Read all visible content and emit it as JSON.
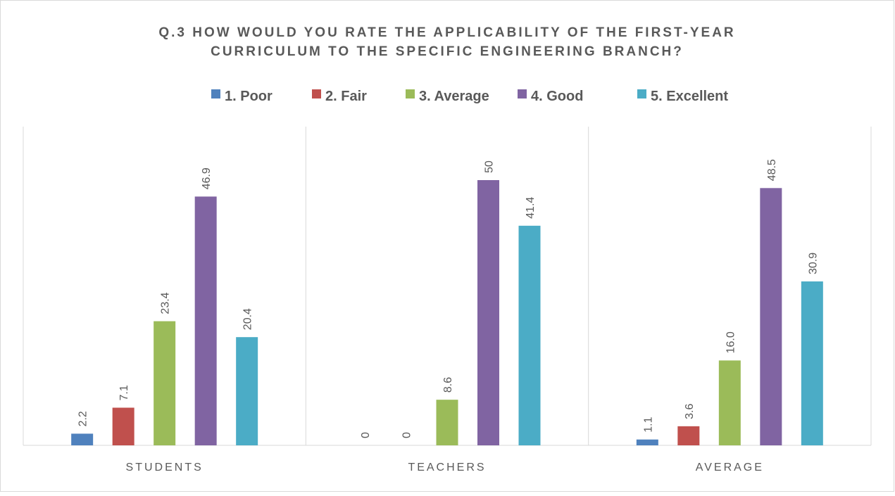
{
  "chart_data": {
    "type": "bar",
    "title_lines": [
      "Q.3  HOW WOULD YOU RATE THE APPLICABILITY OF THE FIRST-YEAR",
      "CURRICULUM TO THE SPECIFIC ENGINEERING BRANCH?"
    ],
    "categories": [
      "STUDENTS",
      "TEACHERS",
      "AVERAGE"
    ],
    "series": [
      {
        "name": "1.   Poor",
        "color": "#4F81BD",
        "values": [
          2.2,
          0,
          1.1
        ],
        "labels": [
          "2.2",
          "0",
          "1.1"
        ]
      },
      {
        "name": "2.   Fair",
        "color": "#C0504D",
        "values": [
          7.1,
          0,
          3.6
        ],
        "labels": [
          "7.1",
          "0",
          "3.6"
        ]
      },
      {
        "name": "3.   Average",
        "color": "#9BBB59",
        "values": [
          23.4,
          8.6,
          16.0
        ],
        "labels": [
          "23.4",
          "8.6",
          "16.0"
        ]
      },
      {
        "name": "4.   Good",
        "color": "#8064A2",
        "values": [
          46.9,
          50,
          48.5
        ],
        "labels": [
          "46.9",
          "50",
          "48.5"
        ]
      },
      {
        "name": "5.   Excellent",
        "color": "#4BACC6",
        "values": [
          20.4,
          41.4,
          30.9
        ],
        "labels": [
          "20.4",
          "41.4",
          "30.9"
        ]
      }
    ],
    "legend_position": "top",
    "ylim": [
      0,
      60
    ],
    "grid": "vertical category separators",
    "xlabel": "",
    "ylabel": ""
  }
}
